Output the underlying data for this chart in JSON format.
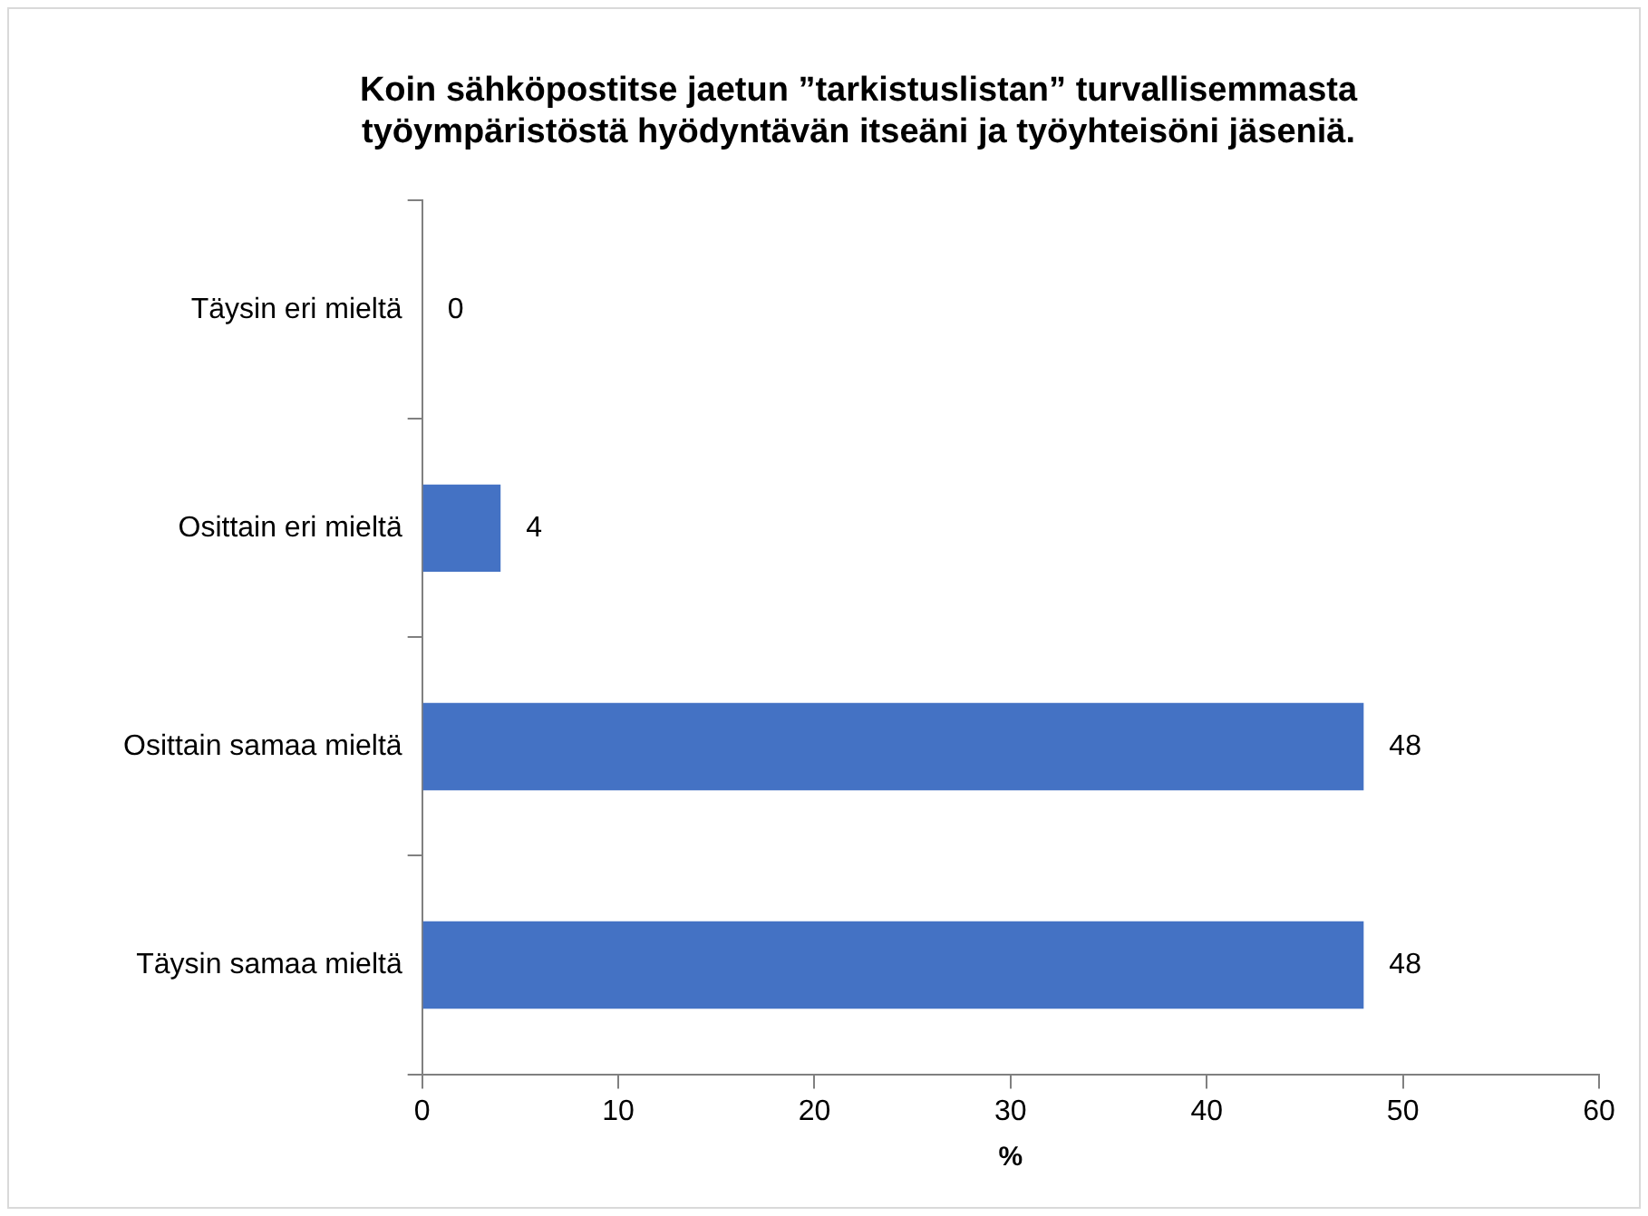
{
  "chart_data": {
    "type": "bar",
    "orientation": "horizontal",
    "title": "Koin sähköpostitse jaetun ”tarkistuslistan” turvallisemmasta\ntyöympäristöstä hyödyntävän itseäni ja työyhteisöni jäseniä.",
    "xlabel": "%",
    "categories": [
      "Täysin eri mieltä",
      "Osittain eri mieltä",
      "Osittain samaa mieltä",
      "Täysin samaa mieltä"
    ],
    "values": [
      0,
      4,
      48,
      48
    ],
    "color": "#4472c4",
    "xlim": [
      0,
      60
    ],
    "xticks": [
      0,
      10,
      20,
      30,
      40,
      50,
      60
    ],
    "grid": false,
    "legend": false,
    "data_labels": true
  }
}
